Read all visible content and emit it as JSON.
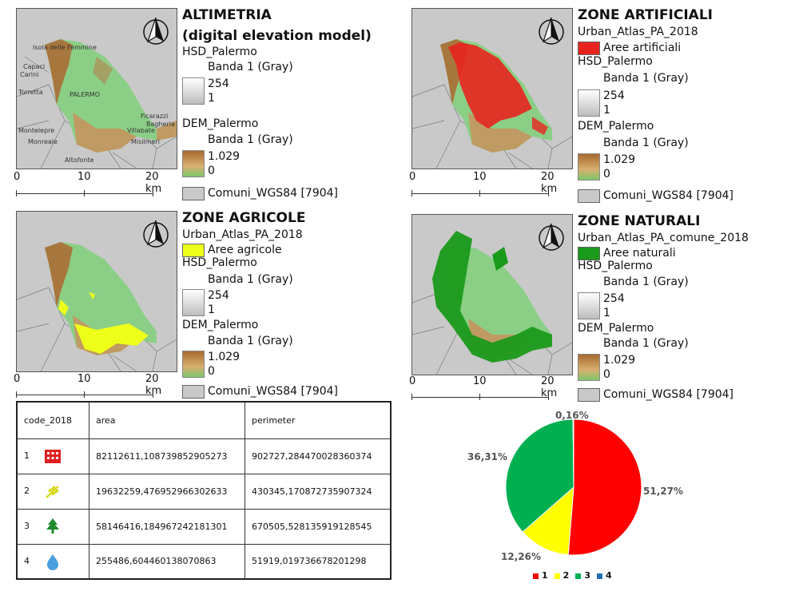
{
  "colors": {
    "artificial": "#e8231f",
    "agricultural": "#eeff1a",
    "natural": "#1a9a1a",
    "pie1": "#ff0000",
    "pie2": "#ffff00",
    "pie3": "#00b050",
    "pie4": "#1f6fb5"
  },
  "scale": {
    "labels": [
      "0",
      "10",
      "20 km"
    ]
  },
  "altimetria": {
    "title1": "ALTIMETRIA",
    "title2": "(digital elevation model)",
    "hsd": "HSD_Palermo",
    "band": "Banda 1 (Gray)",
    "hsd_max": "254",
    "hsd_min": "1",
    "dem": "DEM_Palermo",
    "dem_max": "1.029",
    "dem_min": "0",
    "comuni": "Comuni_WGS84 [7904]",
    "towns": [
      "Isola delle Femmine",
      "Capaci",
      "Carini",
      "Torretta",
      "PALERMO",
      "Ficarazzi",
      "Villabate",
      "Montelepre",
      "Monreale",
      "Bagheria",
      "Misilmeri",
      "Altofonte"
    ]
  },
  "artificiali": {
    "title": "ZONE ARTIFICIALI",
    "layer": "Urban_Atlas_PA_2018",
    "class": "Aree artificiali",
    "hsd": "HSD_Palermo",
    "band": "Banda 1 (Gray)",
    "hsd_max": "254",
    "hsd_min": "1",
    "dem": "DEM_Palermo",
    "dem_max": "1.029",
    "dem_min": "0",
    "comuni": "Comuni_WGS84 [7904]"
  },
  "agricole": {
    "title": "ZONE AGRICOLE",
    "layer": "Urban_Atlas_PA_2018",
    "class": "Aree agricole",
    "hsd": "HSD_Palermo",
    "band": "Banda 1 (Gray)",
    "hsd_max": "254",
    "hsd_min": "1",
    "dem": "DEM_Palermo",
    "dem_max": "1.029",
    "dem_min": "0",
    "comuni": "Comuni_WGS84 [7904]"
  },
  "naturali": {
    "title": "ZONE NATURALI",
    "layer": "Urban_Atlas_PA_comune_2018",
    "class": "Aree naturali",
    "hsd": "HSD_Palermo",
    "band": "Banda 1 (Gray)",
    "hsd_max": "254",
    "hsd_min": "1",
    "dem": "DEM_Palermo",
    "dem_max": "1.029",
    "dem_min": "0",
    "comuni": "Comuni_WGS84 [7904]"
  },
  "table": {
    "headers": [
      "code_2018",
      "area",
      "perimeter"
    ],
    "rows": [
      {
        "code": "1",
        "icon": "building-icon",
        "area": "82112611,108739852905273",
        "perimeter": "902727,284470028360374"
      },
      {
        "code": "2",
        "icon": "wheat-icon",
        "area": "19632259,476952966302633",
        "perimeter": "430345,170872735907324"
      },
      {
        "code": "3",
        "icon": "tree-icon",
        "area": "58146416,184967242181301",
        "perimeter": "670505,528135919128545"
      },
      {
        "code": "4",
        "icon": "water-drop-icon",
        "area": "255486,604460138070863",
        "perimeter": "51919,019736678201298"
      }
    ]
  },
  "chart_data": {
    "type": "pie",
    "categories": [
      "1",
      "2",
      "3",
      "4"
    ],
    "values": [
      51.27,
      12.26,
      36.31,
      0.16
    ],
    "labels": [
      "51,27%",
      "12,26%",
      "36,31%",
      "0,16%"
    ],
    "legend": "bottom"
  }
}
